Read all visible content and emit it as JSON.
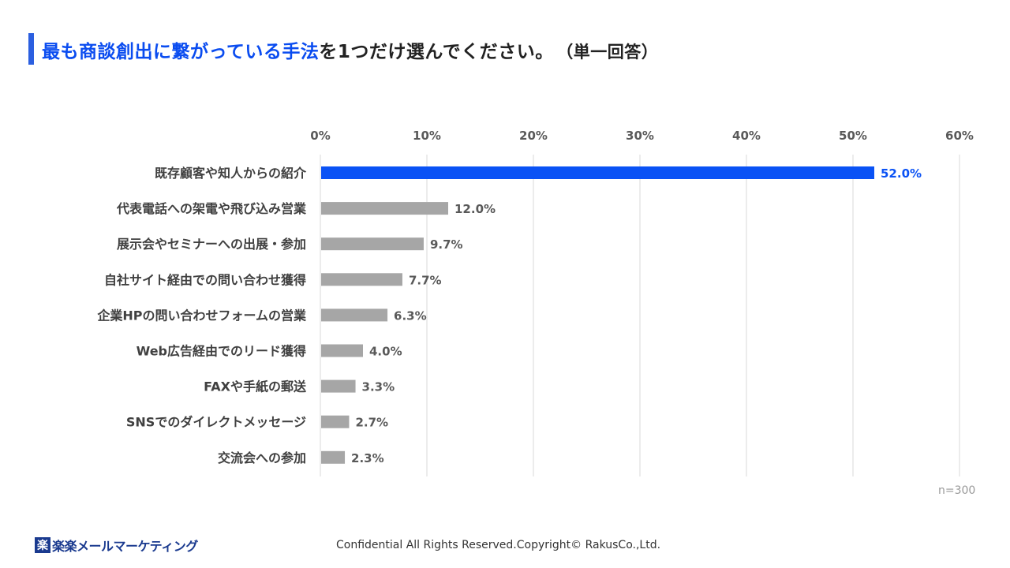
{
  "header": {
    "title_highlight": "最も商談創出に繋がっている手法",
    "title_rest": "を1つだけ選んでください。",
    "title_sub": "（単一回答）"
  },
  "colors": {
    "accent": "#0a4cf0",
    "bar_default": "#a6a6a6",
    "bar_highlight": "#0a52f5",
    "grid": "#d9d9d9"
  },
  "chart_data": {
    "type": "bar",
    "orientation": "horizontal",
    "categories": [
      "既存顧客や知人からの紹介",
      "代表電話への架電や飛び込み営業",
      "展示会やセミナーへの出展・参加",
      "自社サイト経由での問い合わせ獲得",
      "企業HPの問い合わせフォームの営業",
      "Web広告経由でのリード獲得",
      "FAXや手紙の郵送",
      "SNSでのダイレクトメッセージ",
      "交流会への参加"
    ],
    "values": [
      52.0,
      12.0,
      9.7,
      7.7,
      6.3,
      4.0,
      3.3,
      2.7,
      2.3
    ],
    "value_labels": [
      "52.0%",
      "12.0%",
      "9.7%",
      "7.7%",
      "6.3%",
      "4.0%",
      "3.3%",
      "2.7%",
      "2.3%"
    ],
    "highlight_index": 0,
    "xlim": [
      0,
      60
    ],
    "x_ticks": [
      0,
      10,
      20,
      30,
      40,
      50,
      60
    ],
    "x_tick_labels": [
      "0%",
      "10%",
      "20%",
      "30%",
      "40%",
      "50%",
      "60%"
    ],
    "axis_position": "top",
    "grid": true,
    "legend": "none"
  },
  "note": "n=300",
  "footer": {
    "logo_mark": "楽",
    "logo_text": "楽楽メールマーケティング",
    "copyright": "Confidential All Rights Reserved.Copyright© RakusCo.,Ltd."
  }
}
